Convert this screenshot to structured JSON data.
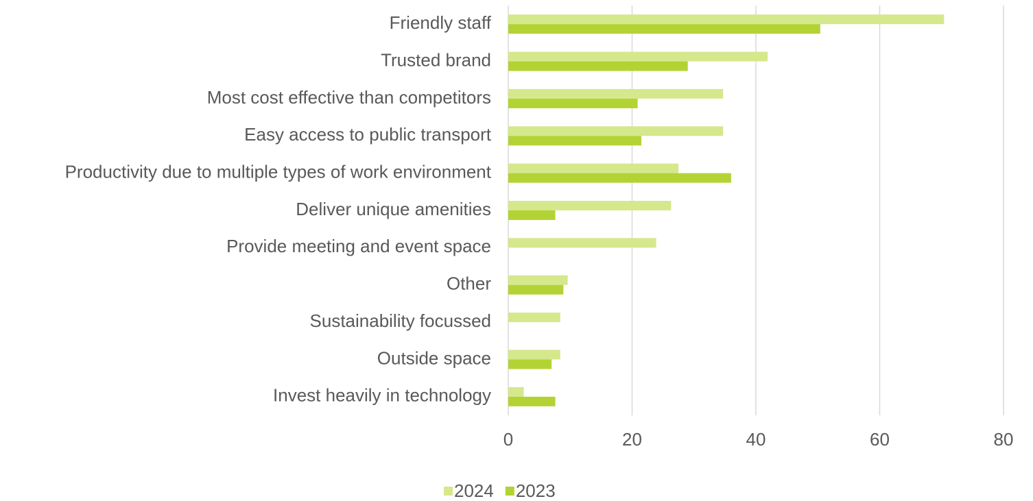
{
  "chart_data": {
    "type": "hbar",
    "categories": [
      "Friendly staff",
      "Trusted brand",
      "Most cost effective than competitors",
      "Easy access to public transport",
      "Productivity due to multiple types of work environment",
      "Deliver unique amenities",
      "Provide meeting and event space",
      "Other",
      "Sustainability focussed",
      "Outside space",
      "Invest heavily in technology"
    ],
    "series": [
      {
        "name": "2024",
        "color": "#d5e88c",
        "values": [
          70.4,
          41.9,
          34.7,
          34.7,
          27.5,
          26.3,
          23.9,
          9.6,
          8.4,
          8.4,
          2.5
        ]
      },
      {
        "name": "2023",
        "color": "#b3d335",
        "values": [
          50.4,
          29,
          20.9,
          21.5,
          36,
          7.6,
          null,
          8.9,
          null,
          7,
          7.6
        ]
      }
    ],
    "xlim": [
      0,
      80
    ],
    "xticks": [
      0,
      20,
      40,
      60,
      80
    ],
    "grid": true,
    "legend": "bottom"
  }
}
